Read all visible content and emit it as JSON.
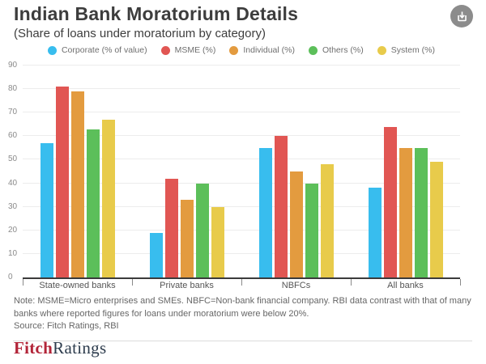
{
  "header": {
    "title": "Indian Bank Moratorium Details",
    "subtitle": "(Share of loans under moratorium by category)"
  },
  "chart_data": {
    "type": "bar",
    "title": "Indian Bank Moratorium Details",
    "subtitle": "(Share of loans under moratorium by category)",
    "categories": [
      "State-owned banks",
      "Private banks",
      "NBFCs",
      "All banks"
    ],
    "series": [
      {
        "name": "Corporate (% of value)",
        "color": "#38bdee",
        "values": [
          57,
          19,
          55,
          38
        ]
      },
      {
        "name": "MSME (%)",
        "color": "#e15653",
        "values": [
          81,
          42,
          60,
          64
        ]
      },
      {
        "name": "Individual (%)",
        "color": "#e39b3f",
        "values": [
          79,
          33,
          45,
          55
        ]
      },
      {
        "name": "Others (%)",
        "color": "#5cbf5a",
        "values": [
          63,
          40,
          40,
          55
        ]
      },
      {
        "name": "System (%)",
        "color": "#e8cb4b",
        "values": [
          67,
          30,
          48,
          49
        ]
      }
    ],
    "ylim": [
      0,
      90
    ],
    "yticks": [
      0,
      10,
      20,
      30,
      40,
      50,
      60,
      70,
      80,
      90
    ],
    "grid": "horizontal",
    "legend_position": "top-center",
    "axis_color": "#3b3b3b",
    "gridline_color": "#ececec"
  },
  "footer": {
    "note": "Note: MSME=Micro enterprises and SMEs. NBFC=Non-bank financial company. RBI data contrast with that of many banks where reported figures for loans under moratorium were below 20%.",
    "source": "Source: Fitch Ratings, RBI",
    "logo": {
      "part1": "Fitch",
      "part2": "Ratings"
    }
  }
}
